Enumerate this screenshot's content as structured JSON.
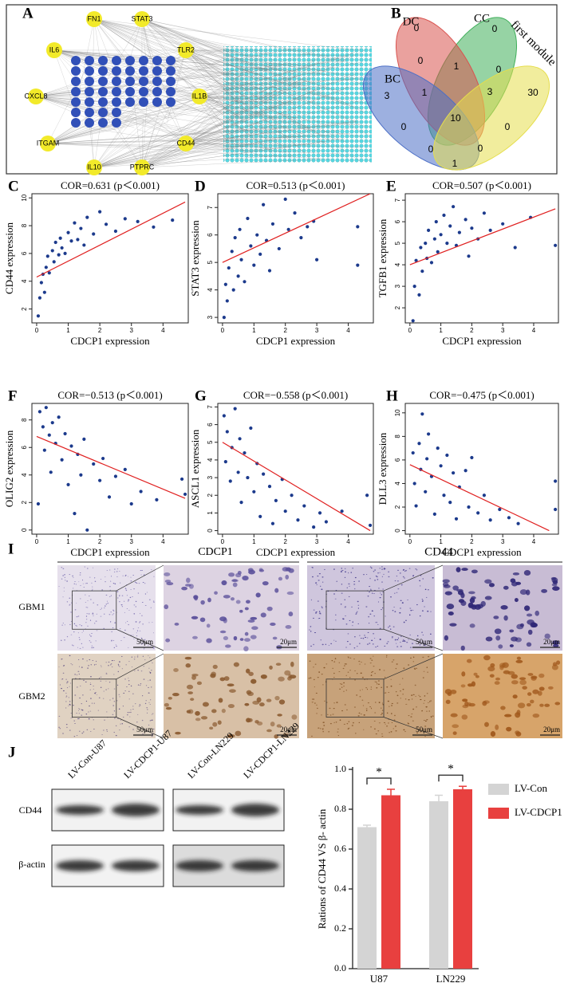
{
  "network": {
    "letter": "A",
    "hub_nodes": [
      "FN1",
      "STAT3",
      "IL6",
      "TLR2",
      "CXCL8",
      "IL1B",
      "ITGAM",
      "CD44",
      "IL10",
      "PTPRC"
    ]
  },
  "venn": {
    "letter": "B",
    "sets": [
      "DC",
      "CC",
      "BC",
      "first module"
    ],
    "counts": [
      0,
      0,
      0,
      1,
      0,
      3,
      1,
      3,
      30,
      0,
      10,
      0,
      0,
      0,
      1
    ]
  },
  "chart_data": [
    {
      "type": "scatter",
      "panel": "C",
      "title": "COR=0.631 (p＜0.001)",
      "x_label": "CDCP1 expression",
      "y_label": "CD44 expression",
      "color": "#1c3a8c",
      "x": [
        0.05,
        0.1,
        0.15,
        0.2,
        0.25,
        0.3,
        0.35,
        0.4,
        0.5,
        0.55,
        0.6,
        0.7,
        0.75,
        0.8,
        0.9,
        1.0,
        1.1,
        1.2,
        1.3,
        1.4,
        1.5,
        1.6,
        1.8,
        2.0,
        2.2,
        2.5,
        2.8,
        3.2,
        3.7,
        4.3
      ],
      "values": [
        1.5,
        2.8,
        3.9,
        4.5,
        3.2,
        5.0,
        5.8,
        4.6,
        6.2,
        5.4,
        6.8,
        5.9,
        7.1,
        6.4,
        6.0,
        7.5,
        6.9,
        8.2,
        7.0,
        7.8,
        6.6,
        8.6,
        7.4,
        9.0,
        8.1,
        7.6,
        8.5,
        8.3,
        7.9,
        8.4
      ],
      "trendline": {
        "x": [
          0,
          4.7
        ],
        "y": [
          4.3,
          9.7
        ],
        "color": "#e02020"
      },
      "xlim": [
        -0.15,
        4.8
      ],
      "ylim": [
        1,
        10.3
      ],
      "xticks": [
        0,
        1,
        2,
        3,
        4
      ],
      "yticks": [
        2,
        4,
        6,
        8,
        10
      ]
    },
    {
      "type": "scatter",
      "panel": "D",
      "title": "COR=0.513 (p＜0.001)",
      "x_label": "CDCP1 expression",
      "y_label": "STAT3 expression",
      "color": "#1c3a8c",
      "x": [
        0.05,
        0.1,
        0.15,
        0.2,
        0.3,
        0.35,
        0.4,
        0.5,
        0.55,
        0.6,
        0.7,
        0.8,
        0.9,
        1.0,
        1.1,
        1.2,
        1.3,
        1.4,
        1.5,
        1.6,
        1.8,
        2.0,
        2.1,
        2.3,
        2.5,
        2.7,
        2.9,
        3.0,
        4.3,
        4.3
      ],
      "values": [
        3.0,
        4.2,
        3.6,
        4.8,
        5.4,
        4.0,
        5.9,
        4.5,
        6.2,
        5.1,
        4.3,
        6.6,
        5.6,
        4.9,
        6.0,
        5.3,
        7.1,
        5.8,
        4.7,
        6.4,
        5.5,
        7.3,
        6.2,
        6.8,
        5.9,
        6.3,
        6.5,
        5.1,
        6.3,
        4.9
      ],
      "trendline": {
        "x": [
          0,
          4.7
        ],
        "y": [
          5.0,
          7.5
        ],
        "color": "#e02020"
      },
      "xlim": [
        -0.15,
        4.8
      ],
      "ylim": [
        2.8,
        7.5
      ],
      "xticks": [
        0,
        1,
        2,
        3,
        4
      ],
      "yticks": [
        3,
        4,
        5,
        6,
        7
      ]
    },
    {
      "type": "scatter",
      "panel": "E",
      "title": "COR=0.507 (p＜0.001)",
      "x_label": "CDCP1 expression",
      "y_label": "TGFB1 expression",
      "color": "#1c3a8c",
      "x": [
        0.1,
        0.15,
        0.2,
        0.3,
        0.35,
        0.4,
        0.5,
        0.55,
        0.6,
        0.7,
        0.8,
        0.85,
        0.9,
        1.0,
        1.1,
        1.2,
        1.3,
        1.4,
        1.5,
        1.6,
        1.8,
        1.9,
        2.0,
        2.2,
        2.4,
        2.6,
        3.0,
        3.4,
        3.9,
        4.7
      ],
      "values": [
        1.4,
        3.0,
        4.2,
        2.6,
        4.8,
        3.7,
        5.0,
        4.3,
        5.6,
        4.1,
        5.2,
        6.0,
        4.6,
        5.4,
        6.3,
        5.0,
        5.8,
        6.7,
        4.9,
        5.5,
        6.1,
        4.4,
        5.7,
        5.2,
        6.4,
        5.6,
        5.9,
        4.8,
        6.2,
        4.9
      ],
      "trendline": {
        "x": [
          0,
          4.7
        ],
        "y": [
          4.0,
          6.6
        ],
        "color": "#e02020"
      },
      "xlim": [
        -0.15,
        4.8
      ],
      "ylim": [
        1.3,
        7.3
      ],
      "xticks": [
        0,
        1,
        2,
        3,
        4
      ],
      "yticks": [
        2,
        3,
        4,
        5,
        6,
        7
      ]
    },
    {
      "type": "scatter",
      "panel": "F",
      "title": "COR=−0.513 (p＜0.001)",
      "x_label": "CDCP1 expression",
      "y_label": "OLIG2 expression",
      "color": "#1c3a8c",
      "x": [
        0.05,
        0.1,
        0.2,
        0.25,
        0.3,
        0.4,
        0.45,
        0.5,
        0.6,
        0.7,
        0.8,
        0.9,
        1.0,
        1.1,
        1.2,
        1.3,
        1.4,
        1.5,
        1.6,
        1.8,
        2.0,
        2.1,
        2.3,
        2.5,
        2.8,
        3.0,
        3.3,
        3.8,
        4.6,
        4.7
      ],
      "values": [
        1.9,
        8.6,
        7.5,
        5.8,
        8.9,
        6.9,
        4.2,
        7.8,
        6.3,
        8.2,
        5.1,
        7.0,
        3.3,
        6.1,
        1.2,
        5.5,
        4.0,
        6.6,
        0.0,
        4.8,
        3.6,
        5.2,
        2.4,
        3.9,
        4.4,
        1.9,
        2.8,
        2.2,
        3.7,
        2.6
      ],
      "trendline": {
        "x": [
          0,
          4.7
        ],
        "y": [
          6.8,
          2.3
        ],
        "color": "#e02020"
      },
      "xlim": [
        -0.15,
        4.8
      ],
      "ylim": [
        -0.3,
        9.2
      ],
      "xticks": [
        0,
        1,
        2,
        3,
        4
      ],
      "yticks": [
        0,
        2,
        4,
        6,
        8
      ]
    },
    {
      "type": "scatter",
      "panel": "G",
      "title": "COR=−0.558 (p＜0.001)",
      "x_label": "CDCP1 expression",
      "y_label": "ASCL1 expression",
      "color": "#1c3a8c",
      "x": [
        0.05,
        0.1,
        0.15,
        0.25,
        0.3,
        0.4,
        0.5,
        0.55,
        0.6,
        0.7,
        0.8,
        0.9,
        1.0,
        1.1,
        1.2,
        1.3,
        1.5,
        1.6,
        1.7,
        1.9,
        2.0,
        2.2,
        2.4,
        2.6,
        2.9,
        3.1,
        3.3,
        3.8,
        4.6,
        4.7
      ],
      "values": [
        6.5,
        3.9,
        5.6,
        2.8,
        4.7,
        6.9,
        3.3,
        5.2,
        1.6,
        4.4,
        3.0,
        5.8,
        2.2,
        3.8,
        0.8,
        3.2,
        2.5,
        0.4,
        1.7,
        2.9,
        1.1,
        2.0,
        0.6,
        1.4,
        0.2,
        1.0,
        0.5,
        1.1,
        2.0,
        0.3
      ],
      "trendline": {
        "x": [
          0,
          4.7
        ],
        "y": [
          5.0,
          0.0
        ],
        "color": "#e02020"
      },
      "xlim": [
        -0.15,
        4.8
      ],
      "ylim": [
        -0.2,
        7.2
      ],
      "xticks": [
        0,
        1,
        2,
        3,
        4
      ],
      "yticks": [
        0,
        1,
        2,
        3,
        4,
        5,
        6,
        7
      ]
    },
    {
      "type": "scatter",
      "panel": "H",
      "title": "COR=−0.475 (p＜0.001)",
      "x_label": "CDCP1 expression",
      "y_label": "DLL3 expression",
      "color": "#1c3a8c",
      "x": [
        0.1,
        0.15,
        0.2,
        0.3,
        0.35,
        0.4,
        0.5,
        0.55,
        0.6,
        0.7,
        0.8,
        0.9,
        1.0,
        1.1,
        1.2,
        1.3,
        1.4,
        1.5,
        1.6,
        1.8,
        1.9,
        2.0,
        2.2,
        2.4,
        2.6,
        2.9,
        3.2,
        3.5,
        4.7,
        4.7
      ],
      "values": [
        6.6,
        4.0,
        2.1,
        7.4,
        5.2,
        9.9,
        3.3,
        6.1,
        8.2,
        4.6,
        1.4,
        7.0,
        5.5,
        3.0,
        6.4,
        2.4,
        4.9,
        1.0,
        3.7,
        5.1,
        2.0,
        6.2,
        1.5,
        3.0,
        0.9,
        1.8,
        1.1,
        0.6,
        4.2,
        1.8
      ],
      "trendline": {
        "x": [
          0,
          4.5
        ],
        "y": [
          5.6,
          0.0
        ],
        "color": "#e02020"
      },
      "xlim": [
        -0.15,
        4.8
      ],
      "ylim": [
        -0.3,
        10.8
      ],
      "xticks": [
        0,
        1,
        2,
        3,
        4
      ],
      "yticks": [
        0,
        2,
        4,
        6,
        8,
        10
      ]
    },
    {
      "type": "bar",
      "panel": "J",
      "y_label": "Rations of CD44 VS β- actin",
      "categories": [
        "U87",
        "LN229"
      ],
      "series": [
        {
          "name": "LV-Con",
          "color": "#d4d4d4",
          "values": [
            0.71,
            0.84
          ],
          "errors": [
            0.01,
            0.03
          ]
        },
        {
          "name": "LV-CDCP1",
          "color": "#e8403f",
          "values": [
            0.87,
            0.9
          ],
          "errors": [
            0.03,
            0.015
          ]
        }
      ],
      "significance": [
        "*",
        "*"
      ],
      "ylim": [
        0,
        1.0
      ],
      "yticks": [
        {
          "value": 0,
          "label": "0.0"
        },
        0.2,
        0.4,
        0.6,
        0.8,
        {
          "value": 1.0,
          "label": "1.0"
        }
      ]
    }
  ],
  "ihc": {
    "letter": "I",
    "columns": [
      "CDCP1",
      "CD44"
    ],
    "rows": [
      "GBM1",
      "GBM2"
    ],
    "scale_low": "50μm",
    "scale_high": "20μm"
  },
  "western": {
    "lanes": [
      "LV-Con-U87",
      "LV-CDCP1-U87",
      "LV-Con-LN229",
      "LV-CDCP1-LN229"
    ],
    "rows": [
      "CD44",
      "β-actin"
    ]
  }
}
